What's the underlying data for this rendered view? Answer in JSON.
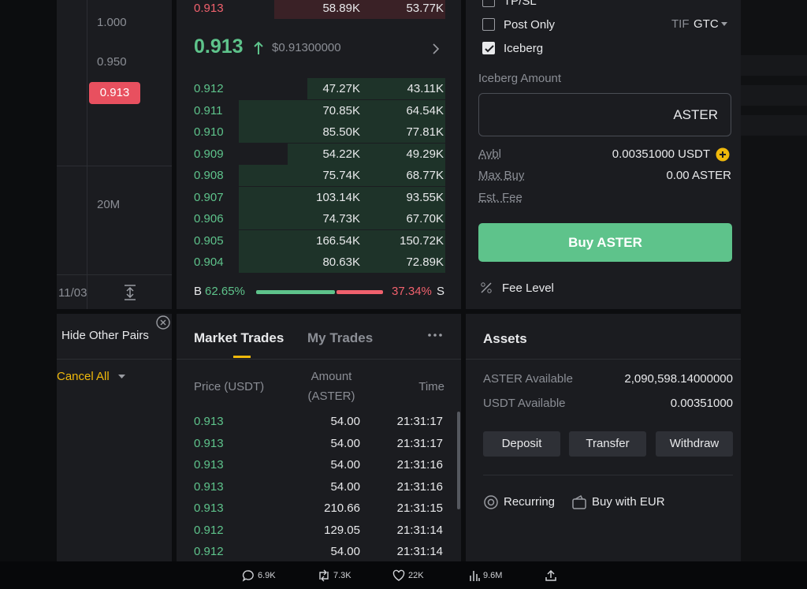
{
  "chart_panel": {
    "price_labels": [
      "1.000",
      "0.950"
    ],
    "current_price": "0.913",
    "volume_label": "20M",
    "date_label": "11/03"
  },
  "order_book": {
    "top_ask": [
      "0.913",
      "58.89K",
      "53.77K"
    ],
    "last_price": "0.913",
    "last_price_usd": "$0.91300000",
    "bids": [
      [
        "0.912",
        "47.27K",
        "43.11K"
      ],
      [
        "0.911",
        "70.85K",
        "64.54K"
      ],
      [
        "0.910",
        "85.50K",
        "77.81K"
      ],
      [
        "0.909",
        "54.22K",
        "49.29K"
      ],
      [
        "0.908",
        "75.74K",
        "68.77K"
      ],
      [
        "0.907",
        "103.14K",
        "93.55K"
      ],
      [
        "0.906",
        "74.73K",
        "67.70K"
      ],
      [
        "0.905",
        "166.54K",
        "150.72K"
      ],
      [
        "0.904",
        "80.63K",
        "72.89K"
      ]
    ],
    "buy_label": "B",
    "buy_ratio": "62.65%",
    "sell_ratio": "37.34%",
    "sell_label": "S"
  },
  "order_form": {
    "tpsl": "TP/SL",
    "post_only": "Post Only",
    "tif_label": "TIF",
    "tif_value": "GTC",
    "iceberg": "Iceberg",
    "iceberg_amount_label": "Iceberg Amount",
    "input_unit": "ASTER",
    "avbl_label": "Avbl",
    "avbl_value": "0.00351000 USDT",
    "max_buy_label": "Max Buy",
    "max_buy_value": "0.00 ASTER",
    "est_fee_label": "Est. Fee",
    "buy_button": "Buy ASTER",
    "fee_level": "Fee Level"
  },
  "open_orders": {
    "hide_other_pairs": "Hide Other Pairs",
    "cancel_all": "Cancel All"
  },
  "trades": {
    "tabs": [
      "Market Trades",
      "My Trades"
    ],
    "headers": {
      "price": "Price (USDT)",
      "amount": [
        "Amount",
        "(ASTER)"
      ],
      "time": "Time"
    },
    "rows": [
      [
        "0.913",
        "54.00",
        "21:31:17"
      ],
      [
        "0.913",
        "54.00",
        "21:31:17"
      ],
      [
        "0.913",
        "54.00",
        "21:31:16"
      ],
      [
        "0.913",
        "54.00",
        "21:31:16"
      ],
      [
        "0.913",
        "210.66",
        "21:31:15"
      ],
      [
        "0.912",
        "129.05",
        "21:31:14"
      ],
      [
        "0.912",
        "54.00",
        "21:31:14"
      ]
    ]
  },
  "assets": {
    "title": "Assets",
    "rows": [
      [
        "ASTER Available",
        "2,090,598.14000000"
      ],
      [
        "USDT Available",
        "0.00351000"
      ]
    ],
    "buttons": [
      "Deposit",
      "Transfer",
      "Withdraw"
    ],
    "links": [
      "Recurring",
      "Buy with EUR"
    ]
  },
  "tweet_stats": {
    "replies": "6.9K",
    "reposts": "7.3K",
    "likes": "22K",
    "views": "9.6M"
  }
}
